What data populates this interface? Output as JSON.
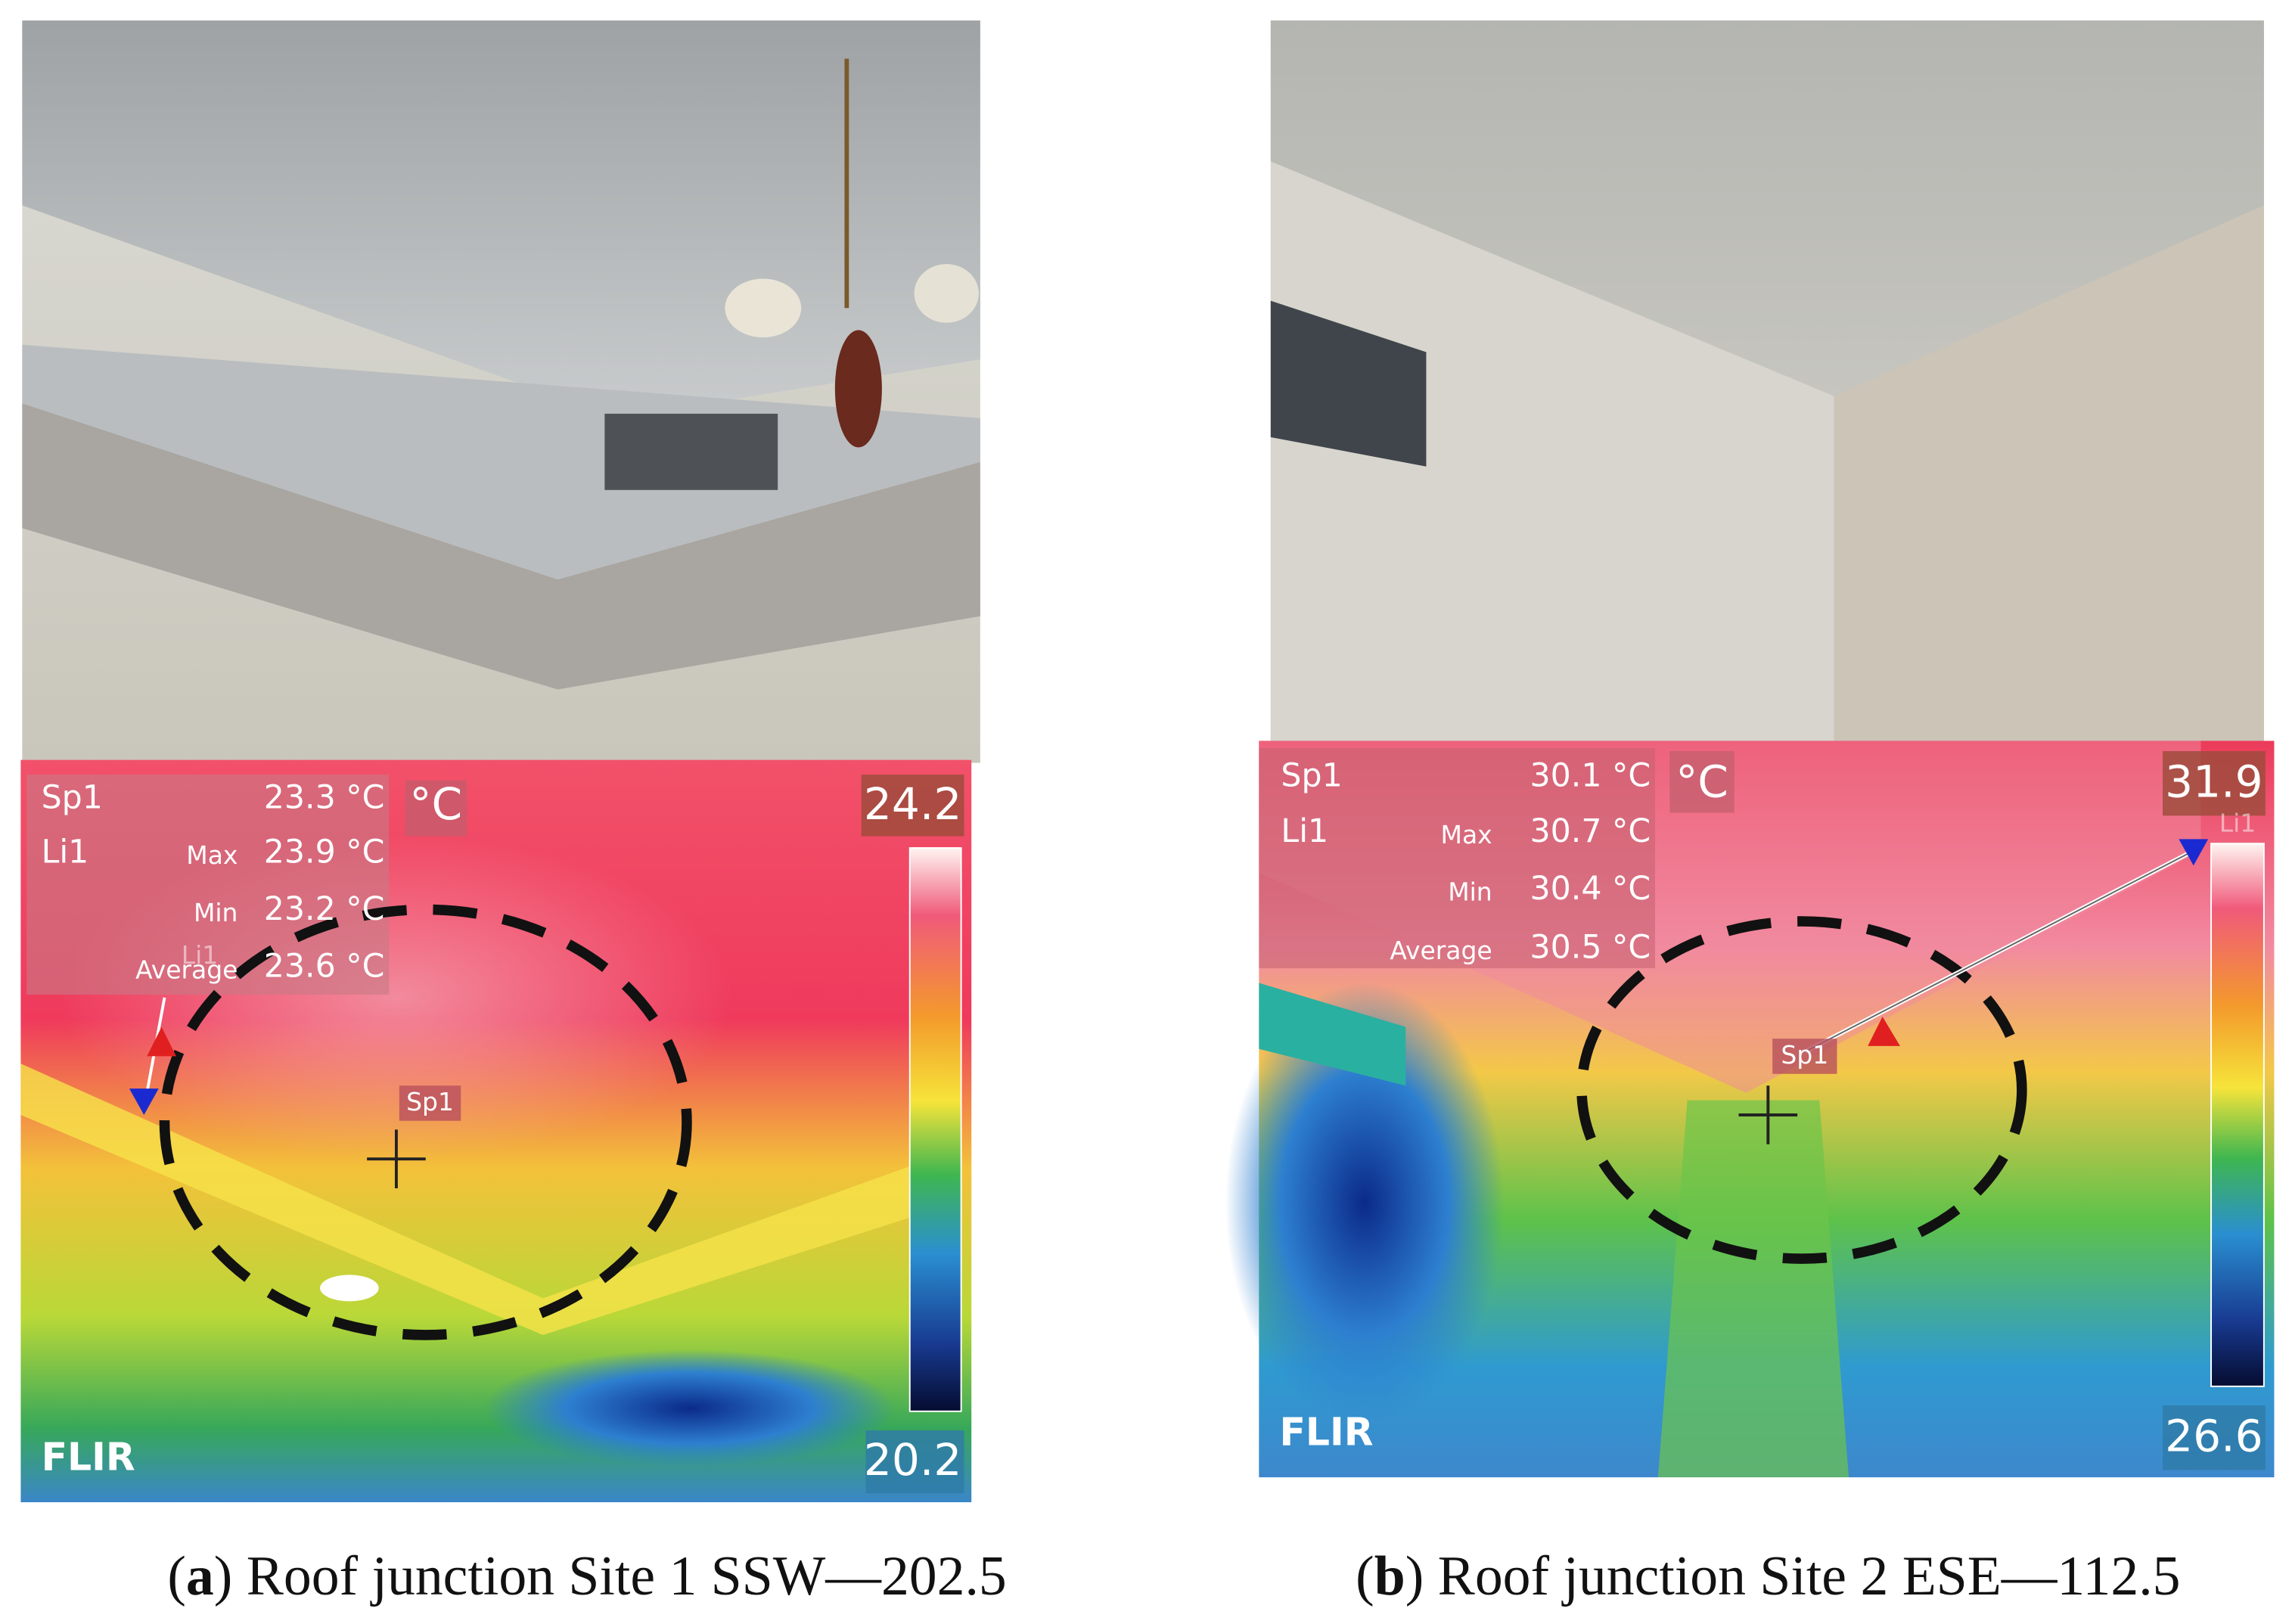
{
  "panels": [
    {
      "readout": {
        "spot": "Sp1",
        "spot_value": "23.3 °C",
        "line": "Li1",
        "max_label": "Max",
        "max_value": "23.9 °C",
        "min_label": "Min",
        "min_value": "23.2 °C",
        "avg_label": "Average",
        "avg_value": "23.6 °C"
      },
      "unit": "°C",
      "scale_max": "24.2",
      "scale_min": "20.2",
      "logo": "FLIR",
      "spot_marker": "Sp1",
      "line_marker": "Li1",
      "caption": [
        "(",
        "a",
        ") Roof junction Site 1 SSW—202.5"
      ]
    },
    {
      "readout": {
        "spot": "Sp1",
        "spot_value": "30.1 °C",
        "line": "Li1",
        "max_label": "Max",
        "max_value": "30.7 °C",
        "min_label": "Min",
        "min_value": "30.4 °C",
        "avg_label": "Average",
        "avg_value": "30.5 °C"
      },
      "unit": "°C",
      "scale_max": "31.9",
      "scale_min": "26.6",
      "logo": "FLIR",
      "spot_marker": "Sp1",
      "line_marker": "Li1",
      "caption": [
        "(",
        "b",
        ") Roof junction Site 2 ESE—112.5"
      ]
    }
  ]
}
